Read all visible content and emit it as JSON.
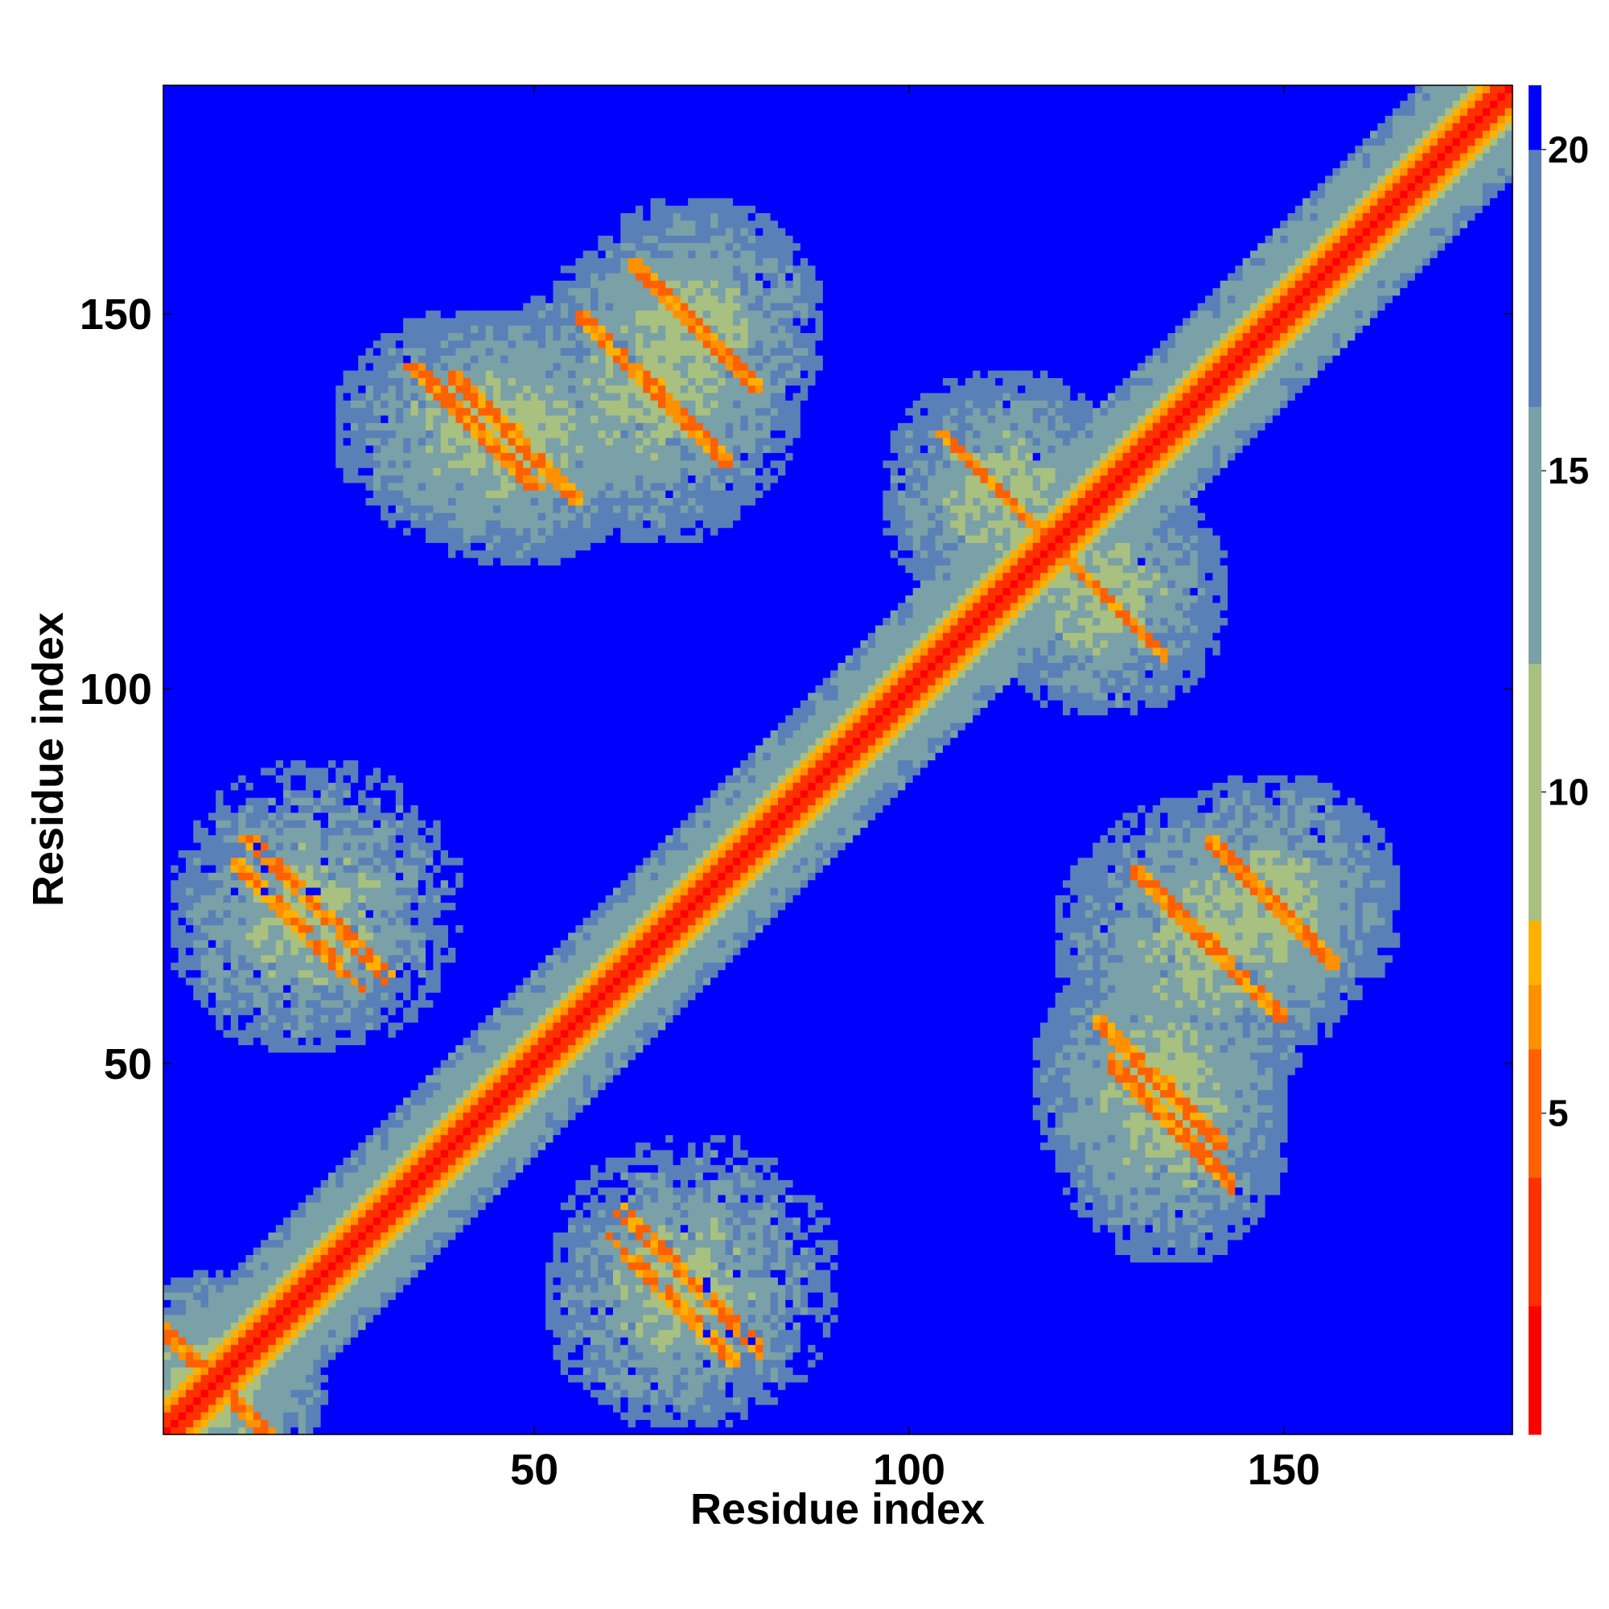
{
  "chart_data": {
    "type": "heatmap",
    "title": "",
    "xlabel": "Residue index",
    "ylabel": "Residue index",
    "x_range": [
      1,
      180
    ],
    "y_range": [
      1,
      180
    ],
    "x_ticks": [
      50,
      100,
      150
    ],
    "y_ticks": [
      50,
      100,
      150
    ],
    "colorbar": {
      "range": [
        0,
        21
      ],
      "ticks": [
        5,
        10,
        15,
        20
      ],
      "colors": [
        "#ff0000",
        "#ff3000",
        "#ff6000",
        "#ff9000",
        "#ffb000",
        "#a8c080",
        "#7aa0a8",
        "#5a80b8",
        "#0000ff"
      ],
      "boundaries": [
        0,
        2,
        4,
        6,
        7,
        8,
        12,
        16,
        20,
        21
      ]
    },
    "grid": false,
    "legend": "colorbar right",
    "description_values": {
      "diagonal_distance": 0,
      "contact_blocks": [
        {
          "i": [
            1,
            12
          ],
          "j": [
            1,
            12
          ],
          "level": 8
        },
        {
          "i": [
            10,
            30
          ],
          "j": [
            60,
            80
          ],
          "level": 9
        },
        {
          "i": [
            60,
            75
          ],
          "j": [
            10,
            25
          ],
          "level": 9
        },
        {
          "i": [
            38,
            55
          ],
          "j": [
            125,
            140
          ],
          "level": 9
        },
        {
          "i": [
            125,
            140
          ],
          "j": [
            38,
            55
          ],
          "level": 9
        },
        {
          "i": [
            63,
            78
          ],
          "j": [
            140,
            155
          ],
          "level": 9
        },
        {
          "i": [
            140,
            155
          ],
          "j": [
            63,
            78
          ],
          "level": 9
        },
        {
          "i": [
            105,
            118
          ],
          "j": [
            118,
            132
          ],
          "level": 8
        },
        {
          "i": [
            118,
            132
          ],
          "j": [
            105,
            118
          ],
          "level": 8
        },
        {
          "i": [
            128,
            150
          ],
          "j": [
            55,
            75
          ],
          "level": 9
        },
        {
          "i": [
            55,
            75
          ],
          "j": [
            128,
            150
          ],
          "level": 9
        },
        {
          "i": [
            128,
            140
          ],
          "j": [
            32,
            50
          ],
          "level": 9
        },
        {
          "i": [
            32,
            50
          ],
          "j": [
            128,
            140
          ],
          "level": 9
        }
      ]
    }
  }
}
